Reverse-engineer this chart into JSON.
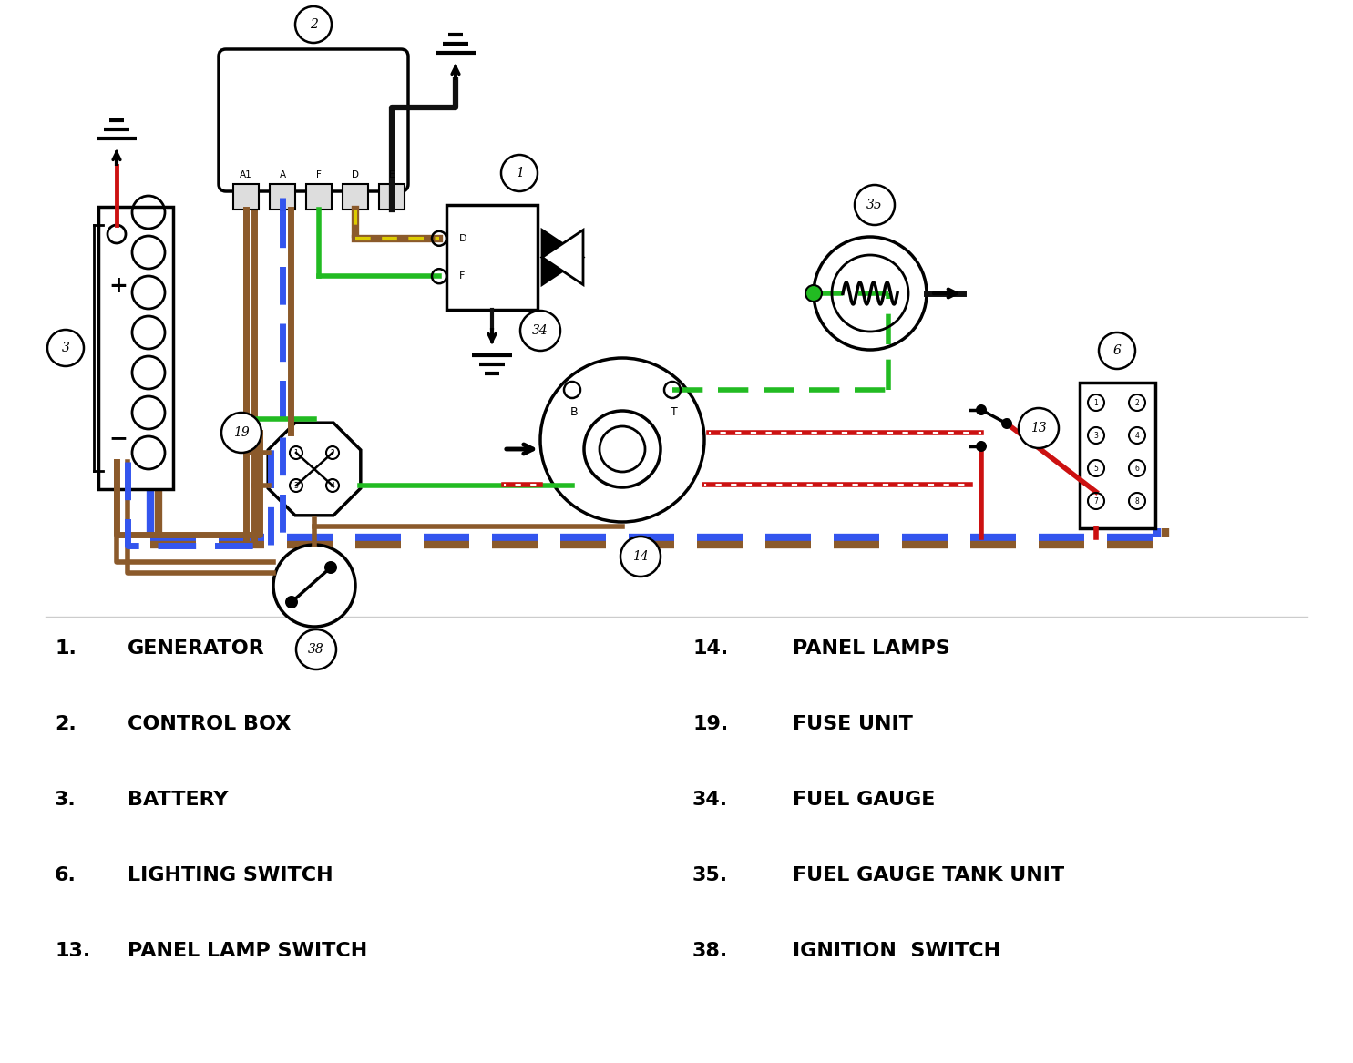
{
  "bg_color": "#ffffff",
  "wire_blue": "#3355ee",
  "wire_brown": "#8B5A2B",
  "wire_green": "#22bb22",
  "wire_yellow": "#ddcc00",
  "wire_red": "#cc1111",
  "wire_black": "#111111",
  "legend_left": [
    {
      "num": "1.",
      "label": "GENERATOR"
    },
    {
      "num": "2.",
      "label": "CONTROL BOX"
    },
    {
      "num": "3.",
      "label": "BATTERY"
    },
    {
      "num": "6.",
      "label": "LIGHTING SWITCH"
    },
    {
      "num": "13.",
      "label": "PANEL LAMP SWITCH"
    }
  ],
  "legend_right": [
    {
      "num": "14.",
      "label": "PANEL LAMPS"
    },
    {
      "num": "19.",
      "label": "FUSE UNIT"
    },
    {
      "num": "34.",
      "label": "FUEL GAUGE"
    },
    {
      "num": "35.",
      "label": "FUEL GAUGE TANK UNIT"
    },
    {
      "num": "38.",
      "label": "IGNITION  SWITCH"
    }
  ]
}
